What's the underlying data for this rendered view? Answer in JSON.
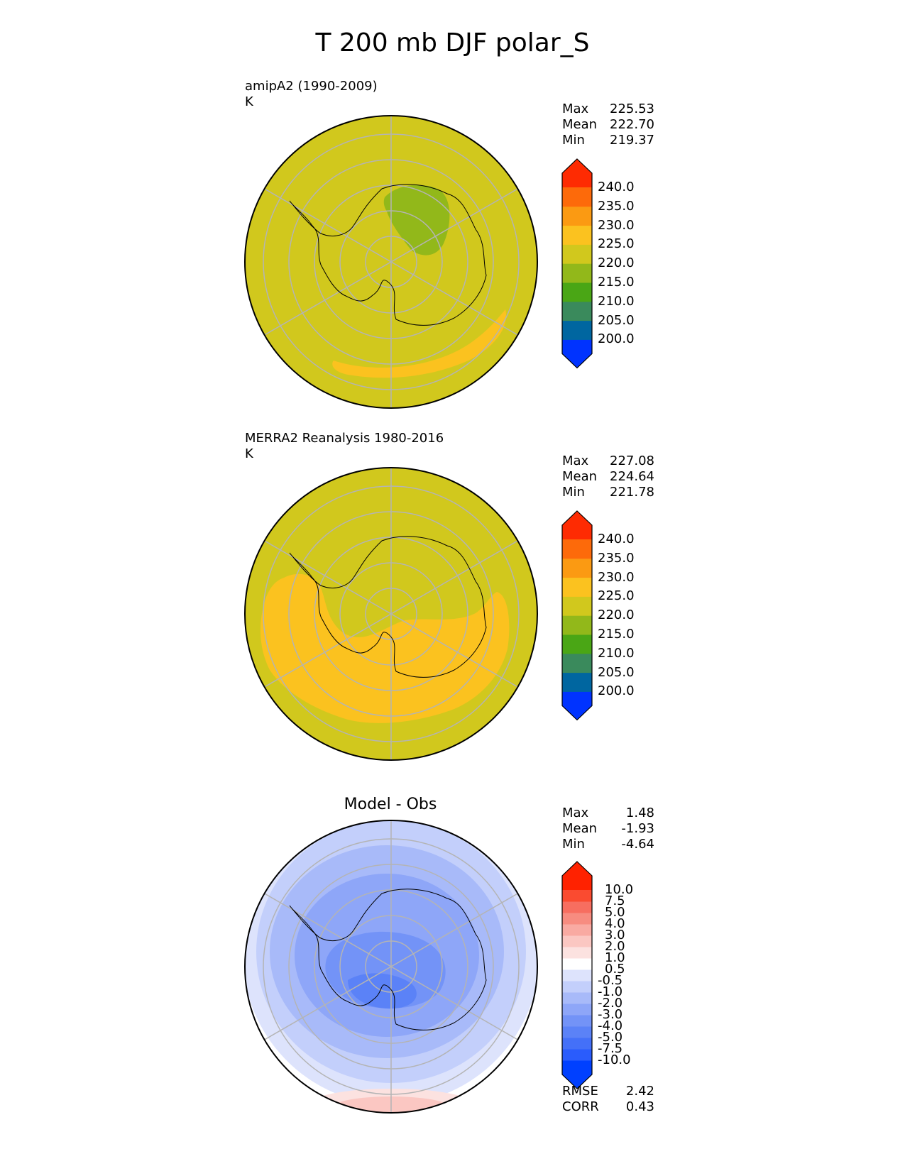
{
  "title": "T 200 mb DJF polar_S",
  "panels": [
    {
      "id": "model",
      "label": "amipA2 (1990-2009)",
      "units": "K",
      "stats": [
        {
          "name": "Max",
          "value": "225.53"
        },
        {
          "name": "Mean",
          "value": "222.70"
        },
        {
          "name": "Min",
          "value": "219.37"
        }
      ]
    },
    {
      "id": "obs",
      "label": "MERRA2 Reanalysis 1980-2016",
      "units": "K",
      "stats": [
        {
          "name": "Max",
          "value": "227.08"
        },
        {
          "name": "Mean",
          "value": "224.64"
        },
        {
          "name": "Min",
          "value": "221.78"
        }
      ]
    },
    {
      "id": "diff",
      "title": "Model - Obs",
      "stats": [
        {
          "name": "Max",
          "value": "1.48"
        },
        {
          "name": "Mean",
          "value": "-1.93"
        },
        {
          "name": "Min",
          "value": "-4.64"
        }
      ],
      "metrics": [
        {
          "name": "RMSE",
          "value": "2.42"
        },
        {
          "name": "CORR",
          "value": "0.43"
        }
      ]
    }
  ],
  "colorbars": {
    "field": {
      "levels": [
        "200.0",
        "205.0",
        "210.0",
        "215.0",
        "220.0",
        "225.0",
        "230.0",
        "235.0",
        "240.0"
      ],
      "colors": [
        "#0033ff",
        "#0066a0",
        "#3a8a5c",
        "#4aa615",
        "#92b81a",
        "#d1c81d",
        "#fbc21f",
        "#fb9a12",
        "#fd6a0a",
        "#fe2b02"
      ]
    },
    "diff": {
      "levels": [
        "-10.0",
        "-7.5",
        "-5.0",
        "-4.0",
        "-3.0",
        "-2.0",
        "-1.0",
        "-0.5",
        "0.5",
        "1.0",
        "2.0",
        "3.0",
        "4.0",
        "5.0",
        "7.5",
        "10.0"
      ],
      "colors": [
        "#0040ff",
        "#2a5cfc",
        "#4470f8",
        "#5b82f7",
        "#7393f7",
        "#8ea6f8",
        "#a8baf9",
        "#c3cffb",
        "#dde3fc",
        "#ffffff",
        "#fce2e0",
        "#fbc7c2",
        "#f9aaa2",
        "#f78c80",
        "#f76e60",
        "#fa4b30",
        "#ff2200"
      ]
    }
  },
  "chart_data": [
    {
      "type": "heatmap",
      "projection": "south polar stereographic",
      "title": "amipA2 (1990-2009)",
      "units": "K",
      "summary": {
        "max": 225.53,
        "mean": 222.7,
        "min": 219.37
      },
      "contour_levels": [
        200,
        205,
        210,
        215,
        220,
        225,
        230,
        235,
        240
      ],
      "regions": [
        {
          "range": "220-225",
          "area": "most of domain"
        },
        {
          "range": "215-220",
          "area": "East Antarctic interior"
        },
        {
          "range": "225-230",
          "area": "band near outer edge"
        }
      ]
    },
    {
      "type": "heatmap",
      "projection": "south polar stereographic",
      "title": "MERRA2 Reanalysis 1980-2016",
      "units": "K",
      "summary": {
        "max": 227.08,
        "mean": 224.64,
        "min": 221.78
      },
      "contour_levels": [
        200,
        205,
        210,
        215,
        220,
        225,
        230,
        235,
        240
      ],
      "regions": [
        {
          "range": "220-225",
          "area": "Antarctic interior and outer rim"
        },
        {
          "range": "225-230",
          "area": "broad horseshoe band"
        }
      ]
    },
    {
      "type": "heatmap",
      "projection": "south polar stereographic",
      "title": "Model - Obs",
      "units": "K",
      "summary": {
        "max": 1.48,
        "mean": -1.93,
        "min": -4.64,
        "rmse": 2.42,
        "corr": 0.43
      },
      "contour_levels": [
        -10,
        -7.5,
        -5,
        -4,
        -3,
        -2,
        -1,
        -0.5,
        0.5,
        1,
        2,
        3,
        4,
        5,
        7.5,
        10
      ],
      "regions": [
        {
          "range": "-4 to -5",
          "area": "center over Antarctica"
        },
        {
          "range": "-0.5 to -3",
          "area": "surrounding rings"
        },
        {
          "range": "0.5 to 2",
          "area": "small area near outer edge"
        }
      ]
    }
  ]
}
